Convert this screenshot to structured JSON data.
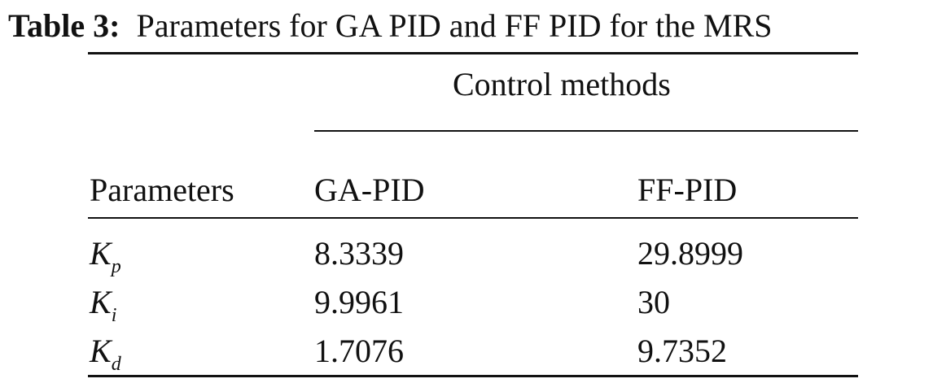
{
  "caption": {
    "label": "Table 3:",
    "text": "Parameters for GA PID and FF PID for the MRS"
  },
  "table": {
    "group_header": "Control methods",
    "columns": [
      "Parameters",
      "GA-PID",
      "FF-PID"
    ],
    "rows": [
      {
        "symbol": "K",
        "subscript": "p",
        "values": [
          8.3339,
          29.8999
        ]
      },
      {
        "symbol": "K",
        "subscript": "i",
        "values": [
          9.9961,
          30
        ]
      },
      {
        "symbol": "K",
        "subscript": "d",
        "values": [
          1.7076,
          9.7352
        ]
      }
    ]
  }
}
